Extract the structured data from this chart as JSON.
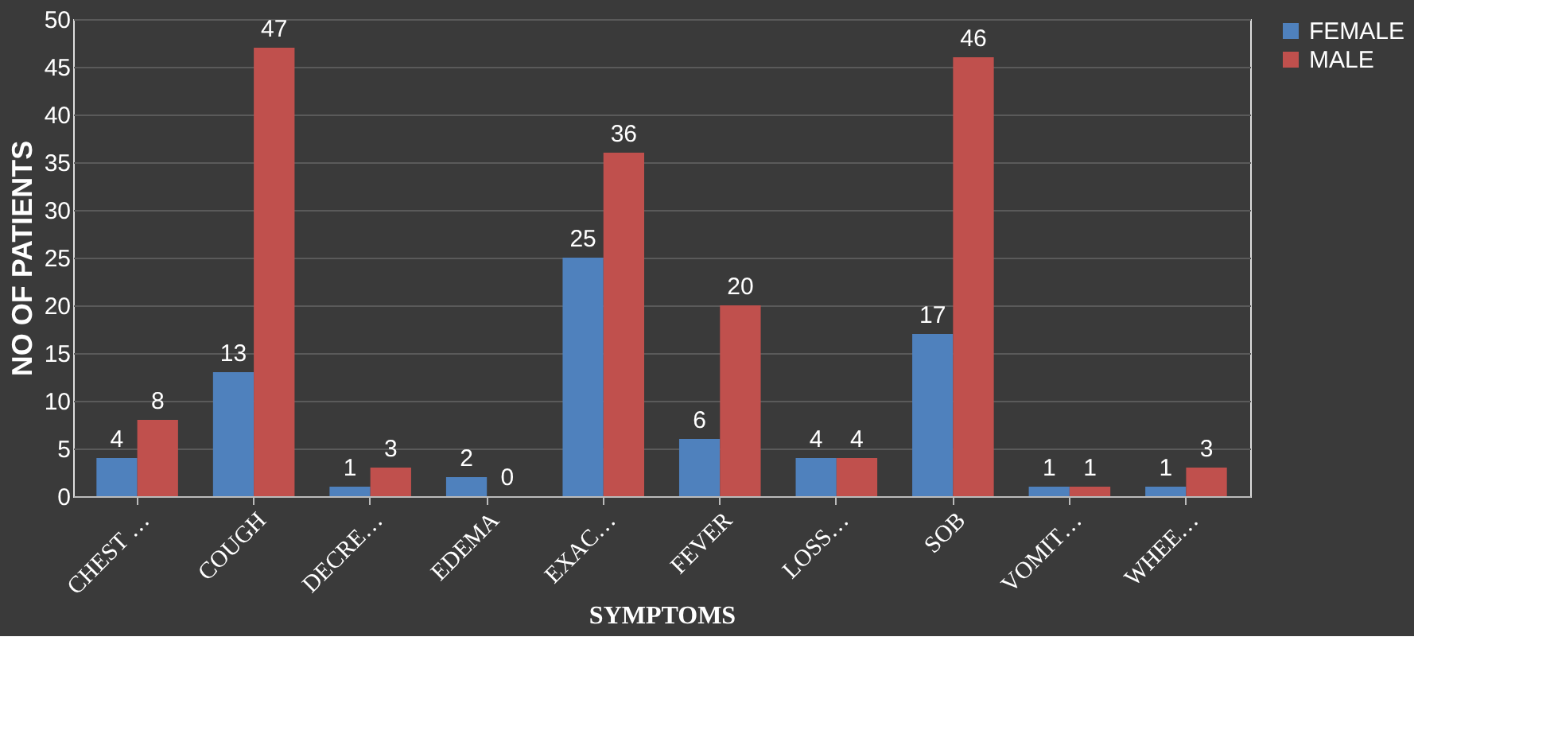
{
  "chart_data": {
    "type": "bar",
    "xlabel": "SYMPTOMS",
    "ylabel": "NO OF PATIENTS",
    "categories": [
      "CHEST …",
      "COUGH",
      "DECRE…",
      "EDEMA",
      "EXAC…",
      "FEVER",
      "LOSS…",
      "SOB",
      "VOMIT…",
      "WHEE…"
    ],
    "series": [
      {
        "name": "FEMALE",
        "color": "#4f81bd",
        "values": [
          4,
          13,
          1,
          2,
          25,
          6,
          4,
          17,
          1,
          1
        ]
      },
      {
        "name": "MALE",
        "color": "#c0504d",
        "values": [
          8,
          47,
          3,
          0,
          36,
          20,
          4,
          46,
          1,
          3
        ]
      }
    ],
    "ylim": [
      0,
      50
    ],
    "yticks": [
      0,
      5,
      10,
      15,
      20,
      25,
      30,
      35,
      40,
      45,
      50
    ],
    "grid": "y",
    "legend": "right",
    "data_labels": true
  }
}
